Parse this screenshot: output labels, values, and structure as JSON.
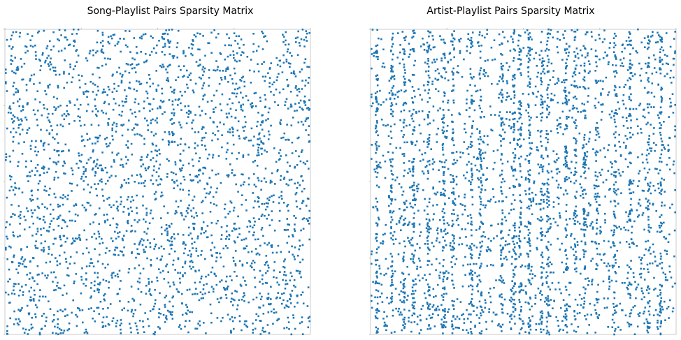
{
  "colors": {
    "marker": "#1f77b4",
    "axes": "#bfbfbf",
    "background": "#ffffff"
  },
  "chart_data": [
    {
      "type": "scatter",
      "title": "Song-Playlist Pairs Sparsity Matrix",
      "xlabel": "",
      "ylabel": "",
      "grid": false,
      "x_axis_position": "top",
      "y_axis_inverted": true,
      "marker": "square",
      "pattern": "uniform",
      "seed": 7,
      "n_points": 2700,
      "column_bands": []
    },
    {
      "type": "scatter",
      "title": "Artist-Playlist Pairs Sparsity Matrix",
      "xlabel": "",
      "ylabel": "",
      "grid": false,
      "x_axis_position": "top",
      "y_axis_inverted": true,
      "marker": "square",
      "pattern": "vertical-bands",
      "seed": 13,
      "n_points": 3600,
      "column_bands": [
        0.02,
        0.07,
        0.11,
        0.14,
        0.19,
        0.24,
        0.27,
        0.33,
        0.36,
        0.43,
        0.47,
        0.49,
        0.52,
        0.56,
        0.58,
        0.64,
        0.67,
        0.7,
        0.74,
        0.8,
        0.85,
        0.91,
        0.95
      ]
    }
  ]
}
